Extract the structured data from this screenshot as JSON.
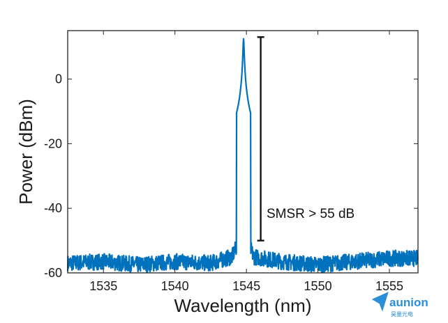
{
  "chart_data": {
    "type": "line",
    "xlabel": "Wavelength (nm)",
    "ylabel": "Power (dBm)",
    "xlim": [
      1532.5,
      1557
    ],
    "ylim": [
      -60,
      15
    ],
    "xticks": [
      1535,
      1540,
      1545,
      1550,
      1555
    ],
    "yticks": [
      0,
      -20,
      -40,
      -60
    ],
    "grid": false,
    "legend": "none",
    "series": [
      {
        "color": "#0072BD",
        "peak_wavelength": 1544.8,
        "peak_power": 12.5,
        "noise_floor": -57,
        "x": [
          1532.5,
          1535,
          1537.5,
          1540,
          1542.5,
          1544,
          1544.5,
          1544.7,
          1544.8,
          1544.9,
          1545.1,
          1545.5,
          1547.5,
          1550,
          1552.5,
          1555,
          1557
        ],
        "y": [
          -57,
          -56.5,
          -57.5,
          -56.5,
          -57,
          -55,
          -50,
          -30,
          12.5,
          -30,
          -50,
          -55,
          -56.5,
          -57.5,
          -56.5,
          -55.5,
          -55.5
        ]
      }
    ],
    "annotation": {
      "text": "SMSR > 55 dB",
      "bracket_x": 1546.0,
      "bracket_top": 13,
      "bracket_bottom": -50
    }
  },
  "colors": {
    "line": "#0072BD",
    "logo": "#2a8fd6"
  },
  "logo": {
    "name": "aunion",
    "subtitle": "昊量光电",
    "icon": "paper-plane-icon"
  }
}
